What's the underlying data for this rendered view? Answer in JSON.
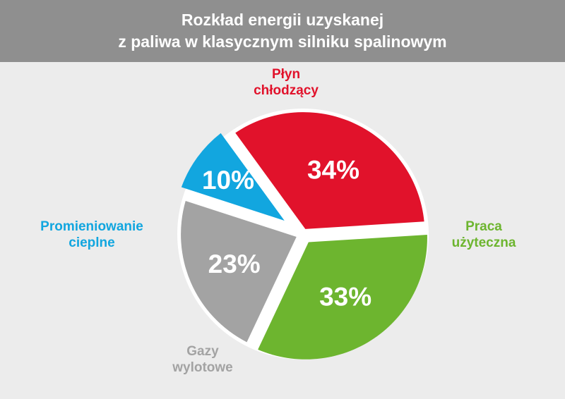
{
  "header": {
    "title_line1": "Rozkład energii uzyskanej",
    "title_line2": "z paliwa w klasycznym silniku spalinowym"
  },
  "chart_data": {
    "type": "pie",
    "title": "Rozkład energii uzyskanej z paliwa w klasycznym silniku spalinowym",
    "unit": "%",
    "slices": [
      {
        "label_line1": "Płyn",
        "label_line2": "chłodzący",
        "value": 34,
        "value_label": "34%",
        "color": "#e1122b"
      },
      {
        "label_line1": "Praca",
        "label_line2": "użyteczna",
        "value": 33,
        "value_label": "33%",
        "color": "#6db52f"
      },
      {
        "label_line1": "Gazy",
        "label_line2": "wylotowe",
        "value": 23,
        "value_label": "23%",
        "color": "#a3a3a3"
      },
      {
        "label_line1": "Promieniowanie",
        "label_line2": "cieplne",
        "value": 10,
        "value_label": "10%",
        "color": "#12a6df"
      }
    ],
    "label_colors": {
      "Płyn chłodzący": "#e1122b",
      "Praca użyteczna": "#6db52f",
      "Gazy wylotowe": "#a3a3a3",
      "Promieniowanie cieplne": "#12a6df"
    }
  }
}
